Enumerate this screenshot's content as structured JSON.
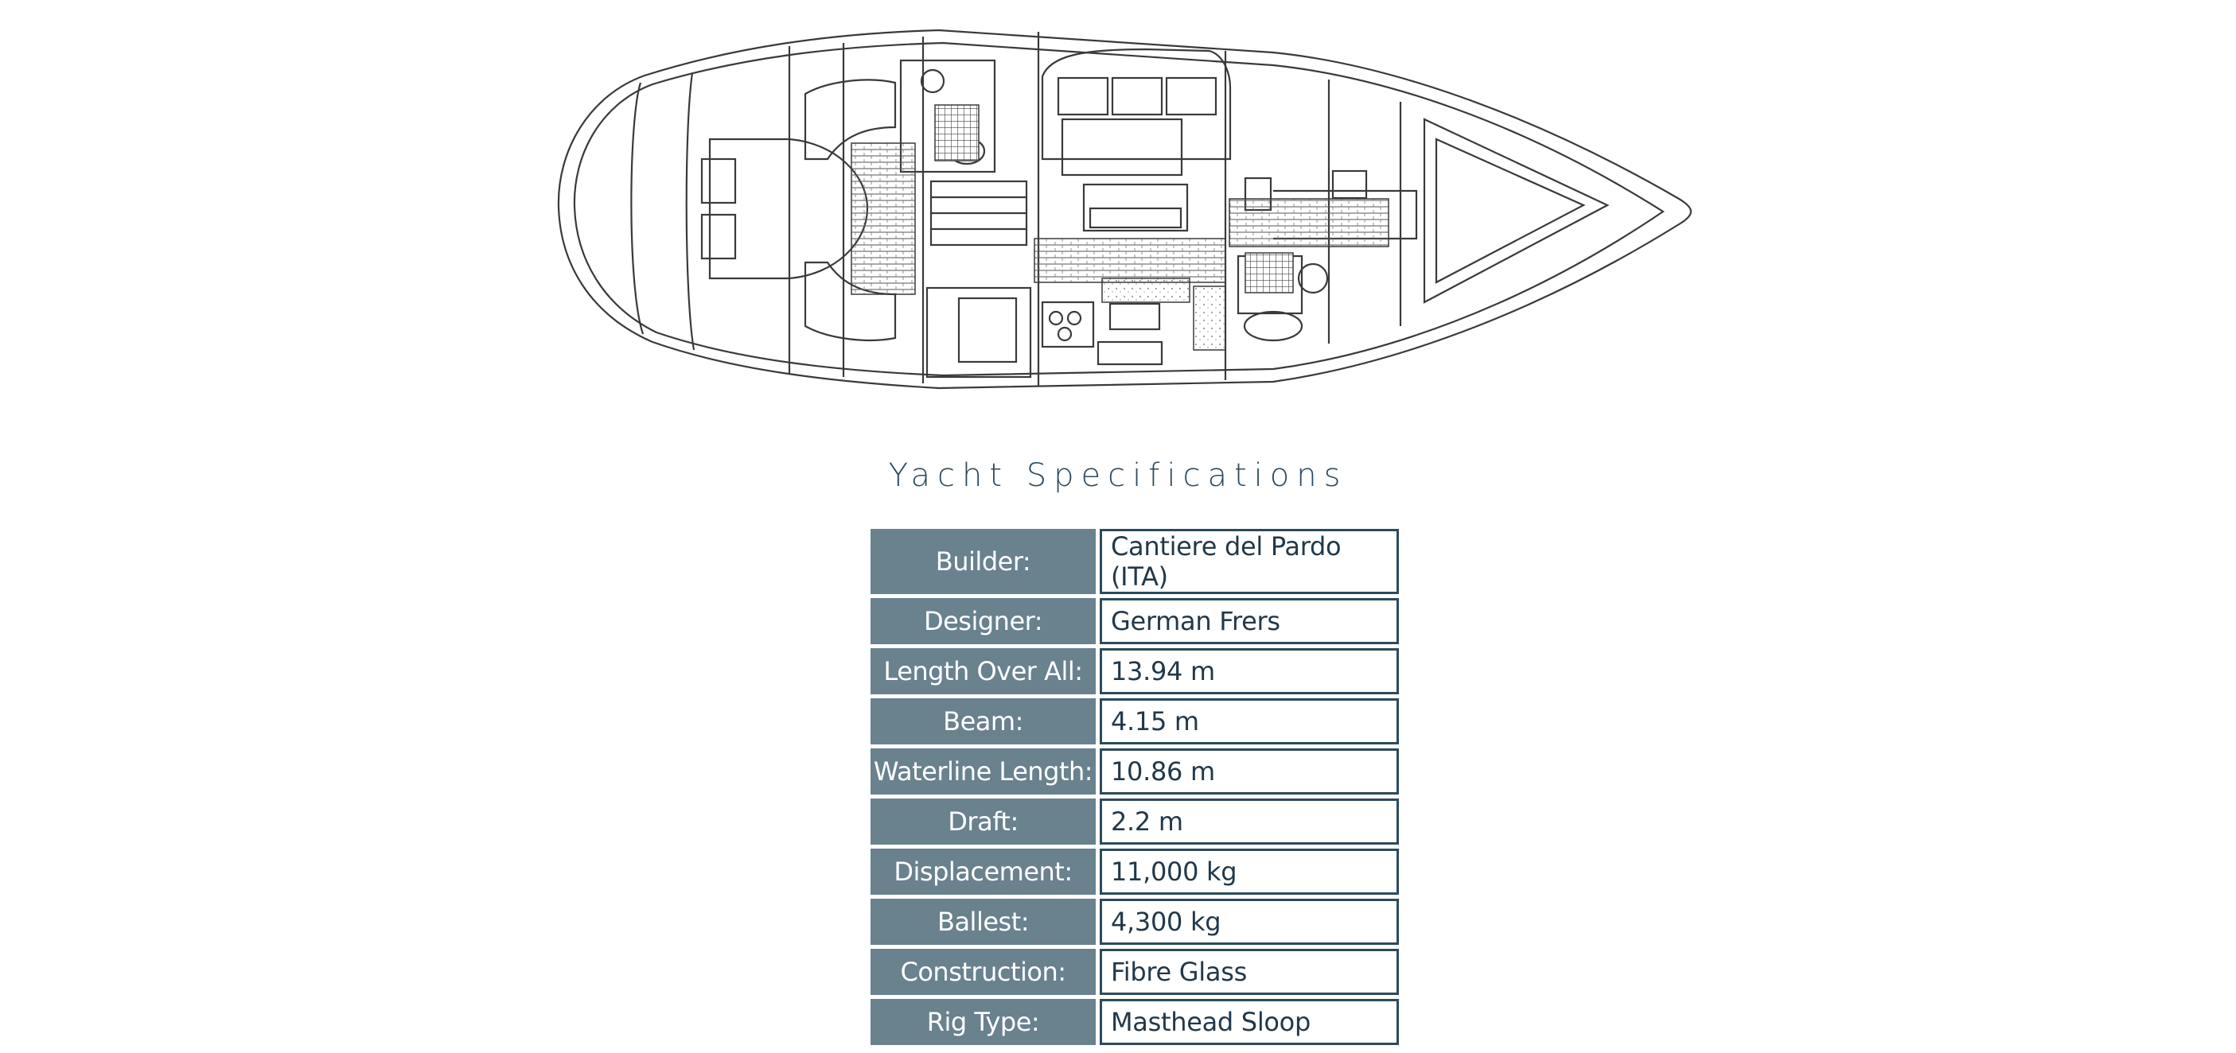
{
  "page": {
    "title": "Yacht Specifications"
  },
  "plan": {
    "alt": "yacht interior deck plan drawing"
  },
  "specs": {
    "rows": [
      {
        "label": "Builder:",
        "value": "Cantiere del Pardo (ITA)"
      },
      {
        "label": "Designer:",
        "value": "German Frers"
      },
      {
        "label": "Length Over All:",
        "value": "13.94 m"
      },
      {
        "label": "Beam:",
        "value": "4.15 m"
      },
      {
        "label": "Waterline Length:",
        "value": "10.86 m"
      },
      {
        "label": "Draft:",
        "value": "2.2 m"
      },
      {
        "label": "Displacement:",
        "value": "11,000 kg"
      },
      {
        "label": "Ballest:",
        "value": "4,300 kg"
      },
      {
        "label": "Construction:",
        "value": "Fibre Glass"
      },
      {
        "label": "Rig Type:",
        "value": "Masthead Sloop"
      }
    ]
  },
  "colors": {
    "label_bg": "#6a818e",
    "label_text": "#ffffff",
    "value_border": "#2c4a5c",
    "value_text": "#22384a",
    "title": "#2e4a5e",
    "drawing_line": "#3a3a3a"
  }
}
